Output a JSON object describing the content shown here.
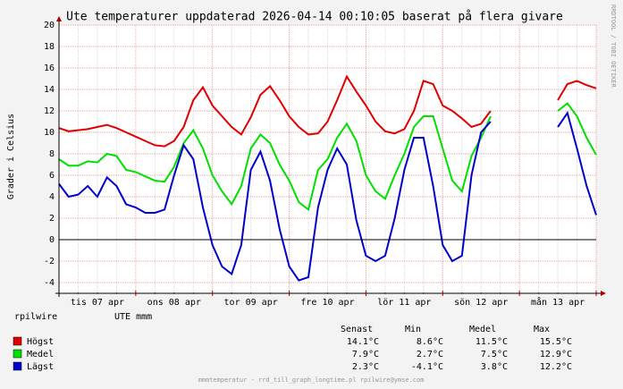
{
  "chart_data": {
    "type": "line",
    "title": "Ute temperaturer uppdaterad 2026-04-14 00:10:05 baserat på flera givare",
    "y_label": "Grader i Celsius",
    "watermark": "RRDTOOL / TOBI OETIKER",
    "footer": "mmmtemperatur - rrd_till_graph_longtime.pl rpilwire@ymse.com",
    "legend_host": "rpilwire",
    "legend_sensor": "UTE mmm",
    "categories": [
      null,
      null,
      null,
      null,
      "tis 07 apr",
      null,
      null,
      null,
      null,
      null,
      null,
      null,
      "ons 08 apr",
      null,
      null,
      null,
      null,
      null,
      null,
      null,
      "tor 09 apr",
      null,
      null,
      null,
      null,
      null,
      null,
      null,
      "fre 10 apr",
      null,
      null,
      null,
      null,
      null,
      null,
      null,
      "lör 11 apr",
      null,
      null,
      null,
      null,
      null,
      null,
      null,
      "sön 12 apr",
      null,
      null,
      null,
      null,
      null,
      null,
      null,
      "mån 13 apr",
      null,
      null,
      null,
      null
    ],
    "series": [
      {
        "name": "Högst",
        "color": "#e00000",
        "values": [
          10.4,
          10.1,
          10.2,
          10.3,
          10.5,
          10.7,
          10.4,
          10.0,
          9.6,
          9.2,
          8.8,
          8.7,
          9.2,
          10.5,
          13.0,
          14.2,
          12.5,
          11.5,
          10.5,
          9.8,
          11.4,
          13.5,
          14.3,
          13.0,
          11.5,
          10.5,
          9.8,
          9.9,
          11.0,
          13.0,
          15.2,
          13.8,
          12.5,
          11.0,
          10.1,
          9.9,
          10.3,
          12.0,
          14.8,
          14.5,
          12.5,
          12.0,
          11.3,
          10.5,
          10.8,
          12.0,
          null,
          null,
          null,
          null,
          null,
          null,
          13.0,
          14.5,
          14.8,
          14.4,
          14.1
        ]
      },
      {
        "name": "Medel",
        "color": "#00e000",
        "values": [
          7.5,
          6.9,
          6.9,
          7.3,
          7.2,
          8.0,
          7.8,
          6.5,
          6.3,
          5.9,
          5.5,
          5.4,
          6.8,
          9.0,
          10.2,
          8.5,
          6.0,
          4.5,
          3.3,
          5.0,
          8.5,
          9.8,
          9.0,
          7.0,
          5.5,
          3.5,
          2.8,
          6.5,
          7.5,
          9.5,
          10.8,
          9.2,
          6.0,
          4.5,
          3.8,
          6.0,
          8.0,
          10.5,
          11.5,
          11.5,
          8.5,
          5.5,
          4.5,
          7.8,
          9.5,
          11.5,
          null,
          null,
          null,
          null,
          null,
          null,
          12.0,
          12.7,
          11.5,
          9.5,
          7.9
        ]
      },
      {
        "name": "Lägst",
        "color": "#0000cc",
        "values": [
          5.2,
          4.0,
          4.2,
          5.0,
          4.0,
          5.8,
          5.0,
          3.3,
          3.0,
          2.5,
          2.5,
          2.8,
          6.0,
          8.8,
          7.5,
          3.0,
          -0.5,
          -2.5,
          -3.2,
          -0.5,
          6.5,
          8.2,
          5.5,
          1.0,
          -2.5,
          -3.8,
          -3.5,
          3.0,
          6.5,
          8.5,
          7.0,
          1.8,
          -1.5,
          -2.0,
          -1.5,
          2.0,
          6.5,
          9.5,
          9.5,
          5.0,
          -0.5,
          -2.0,
          -1.5,
          6.0,
          10.0,
          11.0,
          null,
          null,
          null,
          null,
          null,
          null,
          10.5,
          11.8,
          8.5,
          5.0,
          2.3
        ]
      }
    ],
    "ylim": [
      -5,
      20
    ],
    "yticks": [
      -4,
      -2,
      0,
      2,
      4,
      6,
      8,
      10,
      12,
      14,
      16,
      18,
      20
    ],
    "grid": true,
    "stats": {
      "headers": [
        "Senast",
        "Min",
        "Medel",
        "Max"
      ],
      "rows": [
        [
          "14.1°C",
          "8.6°C",
          "11.5°C",
          "15.5°C"
        ],
        [
          "7.9°C",
          "2.7°C",
          "7.5°C",
          "12.9°C"
        ],
        [
          "2.3°C",
          "-4.1°C",
          "3.8°C",
          "12.2°C"
        ]
      ]
    }
  }
}
